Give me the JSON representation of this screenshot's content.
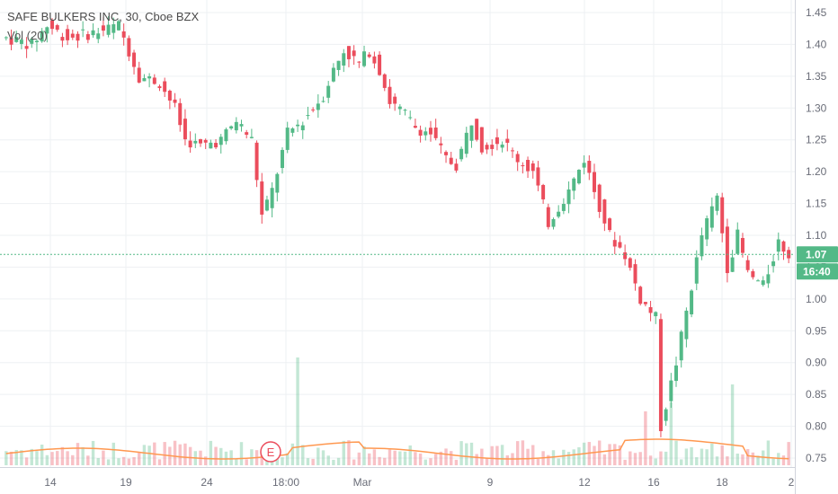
{
  "chart_data": {
    "type": "candlestick",
    "title": "SAFE BULKERS INC, 30, Cboe BZX",
    "indicator_label": "Vol (20)",
    "y_range": [
      0.735,
      1.465
    ],
    "y_ticks": [
      "1.45",
      "1.40",
      "1.35",
      "1.30",
      "1.25",
      "1.20",
      "1.15",
      "1.10",
      "1.05",
      "1.00",
      "0.95",
      "0.90",
      "0.85",
      "0.80",
      "0.75"
    ],
    "x_ticks": [
      "14",
      "19",
      "24",
      "18:00",
      "Mar",
      "9",
      "12",
      "16",
      "18",
      "2"
    ],
    "last_price": "1.07",
    "last_price_value": 1.07,
    "countdown": "16:40",
    "earnings_marker": "E",
    "grid": true,
    "colors": {
      "up": "#53b987",
      "down": "#eb4d5c",
      "volume_ma": "#ff9850",
      "grid": "#eef0f3",
      "axis_text": "#6a6d78"
    },
    "price_path": [
      [
        0,
        1.41
      ],
      [
        5,
        1.4
      ],
      [
        8,
        1.43
      ],
      [
        12,
        1.41
      ],
      [
        18,
        1.42
      ],
      [
        22,
        1.43
      ],
      [
        26,
        1.35
      ],
      [
        30,
        1.34
      ],
      [
        33,
        1.3
      ],
      [
        35,
        1.25
      ],
      [
        38,
        1.24
      ],
      [
        42,
        1.25
      ],
      [
        45,
        1.28
      ],
      [
        48,
        1.25
      ],
      [
        50,
        1.13
      ],
      [
        52,
        1.17
      ],
      [
        55,
        1.26
      ],
      [
        58,
        1.28
      ],
      [
        62,
        1.32
      ],
      [
        64,
        1.36
      ],
      [
        66,
        1.39
      ],
      [
        69,
        1.37
      ],
      [
        71,
        1.39
      ],
      [
        73,
        1.36
      ],
      [
        75,
        1.31
      ],
      [
        78,
        1.29
      ],
      [
        80,
        1.27
      ],
      [
        83,
        1.26
      ],
      [
        86,
        1.22
      ],
      [
        88,
        1.21
      ],
      [
        91,
        1.28
      ],
      [
        93,
        1.24
      ],
      [
        97,
        1.25
      ],
      [
        100,
        1.22
      ],
      [
        103,
        1.2
      ],
      [
        106,
        1.12
      ],
      [
        110,
        1.17
      ],
      [
        113,
        1.22
      ],
      [
        115,
        1.17
      ],
      [
        118,
        1.1
      ],
      [
        121,
        1.07
      ],
      [
        124,
        1.0
      ],
      [
        127,
        0.97
      ],
      [
        128,
        0.8
      ],
      [
        131,
        0.9
      ],
      [
        133,
        0.98
      ],
      [
        136,
        1.1
      ],
      [
        139,
        1.16
      ],
      [
        141,
        1.05
      ],
      [
        143,
        1.1
      ],
      [
        145,
        1.04
      ],
      [
        148,
        1.02
      ],
      [
        151,
        1.09
      ],
      [
        153,
        1.07
      ]
    ]
  }
}
